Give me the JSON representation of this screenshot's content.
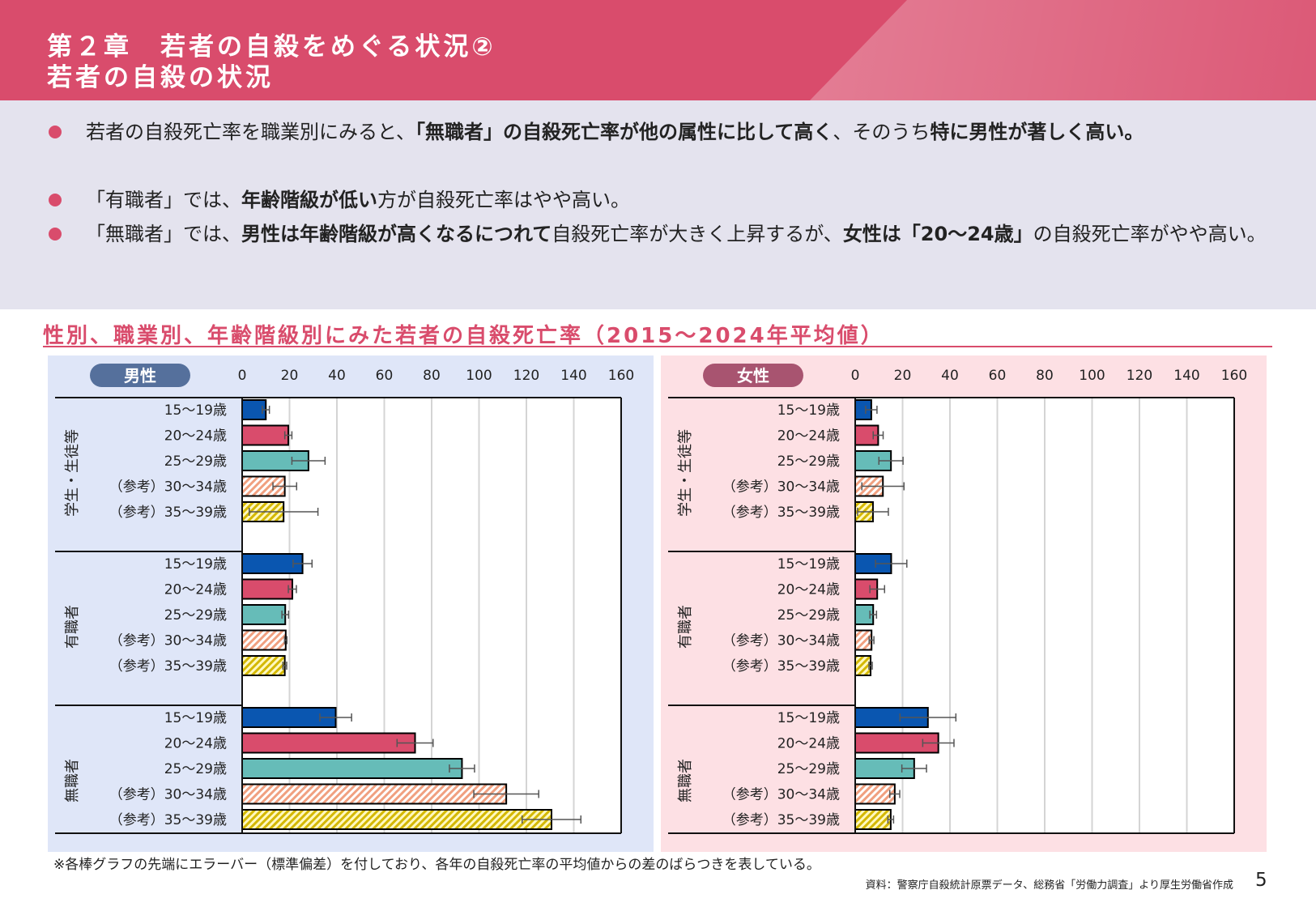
{
  "header": {
    "title_line1": "第２章　若者の自殺をめぐる状況②",
    "title_line2": "若者の自殺の状況",
    "color": "#d94c6c"
  },
  "summary": {
    "bullets": [
      {
        "segments": [
          {
            "text": "若者の自殺死亡率を職業別にみると、",
            "bold": false
          },
          {
            "text": "「無職者」の自殺死亡率が他の属性に比して高く",
            "bold": true
          },
          {
            "text": "、そのうち",
            "bold": false
          },
          {
            "text": "特に男性が著しく高い。",
            "bold": true
          }
        ]
      },
      {
        "segments": [
          {
            "text": "「有職者」では、",
            "bold": false
          },
          {
            "text": "年齢階級が低い",
            "bold": true
          },
          {
            "text": "方が自殺死亡率はやや高い。",
            "bold": false
          }
        ]
      },
      {
        "segments": [
          {
            "text": "「無職者」では、",
            "bold": false
          },
          {
            "text": "男性は年齢階級が高くなるにつれて",
            "bold": true
          },
          {
            "text": "自殺死亡率が大きく上昇するが、",
            "bold": false
          },
          {
            "text": "女性は「20～24歳」",
            "bold": true
          },
          {
            "text": "の自殺死亡率がやや高い。",
            "bold": false
          }
        ]
      }
    ]
  },
  "section_title": "性別、職業別、年齢階級別にみた若者の自殺死亡率（2015～2024年平均値）",
  "colors": {
    "15-19": "#0a56b0",
    "20-24": "#d94c6c",
    "25-29": "#66bcb8",
    "30-34": "#f0a080",
    "35-39": "#d4b800",
    "male_badge": "#55709c",
    "female_badge": "#a85470",
    "male_panel": "#dfe6f8",
    "female_panel": "#fde0e4"
  },
  "chart_data": [
    {
      "type": "bar",
      "orientation": "horizontal",
      "title": "男性",
      "xlim": [
        0,
        160
      ],
      "xticks": [
        "0",
        "20",
        "40",
        "60",
        "80",
        "100",
        "120",
        "140",
        "160"
      ],
      "grid": true,
      "error_bars": "standard deviation",
      "groups": [
        {
          "name": "学生・生徒等",
          "rows": [
            {
              "label": "15～19歳",
              "value": 10,
              "error": 1.5
            },
            {
              "label": "20～24歳",
              "value": 19.5,
              "error": 1.5
            },
            {
              "label": "25～29歳",
              "value": 28,
              "error": 7
            },
            {
              "label": "（参考）30～34歳",
              "value": 18,
              "error": 5
            },
            {
              "label": "（参考）35～39歳",
              "value": 17.5,
              "error": 14.5
            }
          ]
        },
        {
          "name": "有職者",
          "rows": [
            {
              "label": "15～19歳",
              "value": 25.5,
              "error": 4
            },
            {
              "label": "20～24歳",
              "value": 21.2,
              "error": 1.7
            },
            {
              "label": "25～29歳",
              "value": 18.2,
              "error": 1.4
            },
            {
              "label": "（参考）30～34歳",
              "value": 18.4,
              "error": 0.5
            },
            {
              "label": "（参考）35～39歳",
              "value": 18,
              "error": 0.8
            }
          ]
        },
        {
          "name": "無職者",
          "rows": [
            {
              "label": "15～19歳",
              "value": 39.5,
              "error": 6.7
            },
            {
              "label": "20～24歳",
              "value": 73,
              "error": 7.6
            },
            {
              "label": "25～29歳",
              "value": 92.8,
              "error": 5.3
            },
            {
              "label": "（参考）30～34歳",
              "value": 111.5,
              "error": 13.7
            },
            {
              "label": "（参考）35～39歳",
              "value": 130.6,
              "error": 12.4
            }
          ]
        }
      ]
    },
    {
      "type": "bar",
      "orientation": "horizontal",
      "title": "女性",
      "xlim": [
        0,
        160
      ],
      "xticks": [
        "0",
        "20",
        "40",
        "60",
        "80",
        "100",
        "120",
        "140",
        "160"
      ],
      "grid": true,
      "error_bars": "standard deviation",
      "groups": [
        {
          "name": "学生・生徒等",
          "rows": [
            {
              "label": "15～19歳",
              "value": 6.8,
              "error": 2.4
            },
            {
              "label": "20～24歳",
              "value": 9.7,
              "error": 2.1
            },
            {
              "label": "25～29歳",
              "value": 15.1,
              "error": 5.1
            },
            {
              "label": "（参考）30～34歳",
              "value": 11.7,
              "error": 8.9
            },
            {
              "label": "（参考）35～39歳",
              "value": 7.5,
              "error": 6.5
            }
          ]
        },
        {
          "name": "有職者",
          "rows": [
            {
              "label": "15～19歳",
              "value": 15.2,
              "error": 6.6
            },
            {
              "label": "20～24歳",
              "value": 9.3,
              "error": 3.1
            },
            {
              "label": "25～29歳",
              "value": 7.6,
              "error": 1.4
            },
            {
              "label": "（参考）30～34歳",
              "value": 6.9,
              "error": 1
            },
            {
              "label": "（参考）35～39歳",
              "value": 6.5,
              "error": 0.7
            }
          ]
        },
        {
          "name": "無職者",
          "rows": [
            {
              "label": "15～19歳",
              "value": 30.7,
              "error": 11.8
            },
            {
              "label": "20～24歳",
              "value": 35.1,
              "error": 6.6
            },
            {
              "label": "25～29歳",
              "value": 24.9,
              "error": 5.2
            },
            {
              "label": "（参考）30～34歳",
              "value": 16.7,
              "error": 2.1
            },
            {
              "label": "（参考）35～39歳",
              "value": 15,
              "error": 1.2
            }
          ]
        }
      ]
    }
  ],
  "footnote": "※各棒グラフの先端にエラーバー（標準偏差）を付しており、各年の自殺死亡率の平均値からの差のばらつきを表している。",
  "source": "資料：警察庁自殺統計原票データ、総務省「労働力調査」より厚生労働省作成",
  "page_number": "5"
}
